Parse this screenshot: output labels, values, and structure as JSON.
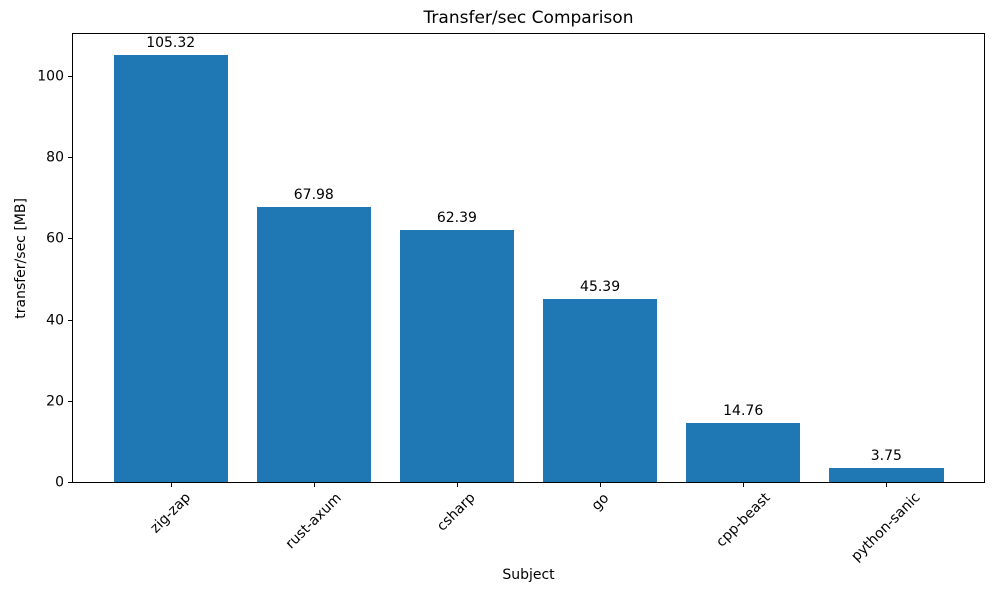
{
  "chart_data": {
    "type": "bar",
    "title": "Transfer/sec Comparison",
    "xlabel": "Subject",
    "ylabel": "transfer/sec [MB]",
    "categories": [
      "zig-zap",
      "rust-axum",
      "csharp",
      "go",
      "cpp-beast",
      "python-sanic"
    ],
    "values": [
      105.32,
      67.98,
      62.39,
      45.39,
      14.76,
      3.75
    ],
    "value_labels": [
      "105.32",
      "67.98",
      "62.39",
      "45.39",
      "14.76",
      "3.75"
    ],
    "yticks": [
      0,
      20,
      40,
      60,
      80,
      100
    ],
    "ylim": [
      0,
      110.8
    ],
    "xlim": [
      -0.69,
      5.69
    ],
    "bar_width": 0.8,
    "bar_color": "#1f77b4",
    "text_color": "#000000",
    "background_color": "#ffffff",
    "grid": false,
    "legend": null,
    "x_tick_rotation_deg": 45
  }
}
